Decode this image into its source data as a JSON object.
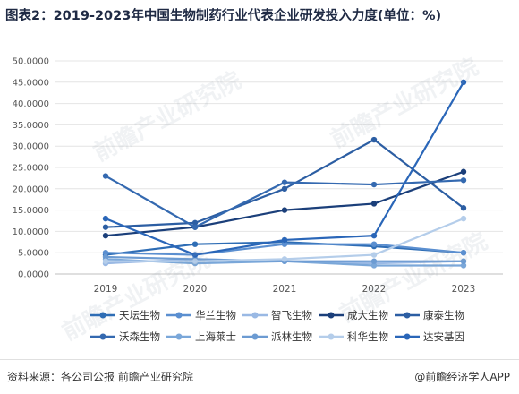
{
  "title": "图表2：2019-2023年中国生物制药行业代表企业研发投入力度(单位：%)",
  "watermark_text": "前瞻产业研究院",
  "footer": {
    "source": "资料来源：各公司公报 前瞻产业研究院",
    "brand": "@前瞻经济学人APP"
  },
  "chart_data": {
    "type": "line",
    "x": [
      "2019",
      "2020",
      "2021",
      "2022",
      "2023"
    ],
    "ylim": [
      0,
      50
    ],
    "yticks": [
      "0.0000",
      "5.0000",
      "10.0000",
      "15.0000",
      "20.0000",
      "25.0000",
      "30.0000",
      "35.0000",
      "40.0000",
      "45.0000",
      "50.0000"
    ],
    "ytick_values": [
      0,
      5,
      10,
      15,
      20,
      25,
      30,
      35,
      40,
      45,
      50
    ],
    "grid": true,
    "legend_position": "bottom",
    "series": [
      {
        "name": "天坛生物",
        "color": "#2e6db5",
        "values": [
          4.5,
          7.0,
          7.5,
          6.5,
          5.0
        ]
      },
      {
        "name": "华兰生物",
        "color": "#5b8fd0",
        "values": [
          5.0,
          4.5,
          7.0,
          7.0,
          5.0
        ]
      },
      {
        "name": "智飞生物",
        "color": "#9ab9e4",
        "values": [
          2.5,
          3.5,
          3.0,
          2.5,
          3.0
        ]
      },
      {
        "name": "成大生物",
        "color": "#1b3f7a",
        "values": [
          9.0,
          11.0,
          15.0,
          16.5,
          24.0
        ]
      },
      {
        "name": "康泰生物",
        "color": "#2c5ea3",
        "values": [
          11.0,
          12.0,
          20.0,
          31.5,
          15.5
        ]
      },
      {
        "name": "沃森生物",
        "color": "#3469b0",
        "values": [
          23.0,
          11.0,
          21.5,
          21.0,
          22.0
        ]
      },
      {
        "name": "上海莱士",
        "color": "#7aa7d9",
        "values": [
          3.5,
          2.5,
          3.0,
          2.0,
          2.0
        ]
      },
      {
        "name": "派林生物",
        "color": "#6c9bd2",
        "values": [
          4.0,
          3.5,
          3.0,
          3.0,
          3.0
        ]
      },
      {
        "name": "科华生物",
        "color": "#b4cdea",
        "values": [
          3.0,
          3.0,
          3.5,
          4.5,
          13.0
        ]
      },
      {
        "name": "达安基因",
        "color": "#2a66b8",
        "values": [
          13.0,
          4.5,
          8.0,
          9.0,
          45.0
        ]
      }
    ]
  }
}
